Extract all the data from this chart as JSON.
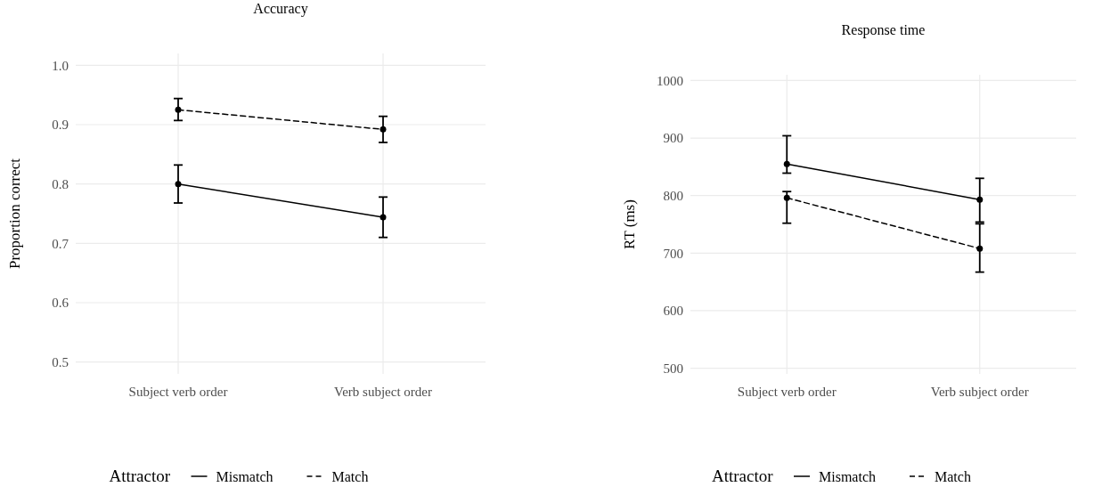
{
  "chart_data": [
    {
      "type": "line",
      "title": "Accuracy",
      "ylabel": "Proportion correct",
      "legend_title": "Attractor",
      "categories": [
        "Subject verb order",
        "Verb subject order"
      ],
      "series": [
        {
          "name": "Mismatch",
          "color": "#000000",
          "line_style": "solid",
          "values": [
            0.8,
            0.744
          ],
          "errors": [
            [
              0.768,
              0.832
            ],
            [
              0.71,
              0.778
            ]
          ]
        },
        {
          "name": "Match",
          "color": "#000000",
          "line_style": "dashed",
          "values": [
            0.925,
            0.892
          ],
          "errors": [
            [
              0.907,
              0.944
            ],
            [
              0.87,
              0.914
            ]
          ]
        }
      ],
      "ylim": [
        0.48,
        1.02
      ],
      "yticks": [
        {
          "value": 0.5,
          "label": "0.5"
        },
        {
          "value": 0.6,
          "label": "0.6"
        },
        {
          "value": 0.7,
          "label": "0.7"
        },
        {
          "value": 0.8,
          "label": "0.8"
        },
        {
          "value": 0.9,
          "label": "0.9"
        },
        {
          "value": 1,
          "label": "1.0"
        }
      ],
      "grid": true,
      "legend": "bottom",
      "marker": "circle"
    },
    {
      "type": "line",
      "title": "Response time",
      "ylabel": "RT (ms)",
      "legend_title": "Attractor",
      "categories": [
        "Subject verb order",
        "Verb subject order"
      ],
      "series": [
        {
          "name": "Mismatch",
          "color": "#000000",
          "line_style": "solid",
          "values": [
            855,
            793
          ],
          "errors": [
            [
              839,
              904
            ],
            [
              754,
              830
            ]
          ]
        },
        {
          "name": "Match",
          "color": "#000000",
          "line_style": "dashed",
          "values": [
            796,
            708
          ],
          "errors": [
            [
              752,
              807
            ],
            [
              667,
              751
            ]
          ]
        }
      ],
      "ylim": [
        490,
        1010
      ],
      "yticks": [
        500,
        600,
        700,
        800,
        900,
        1000
      ],
      "grid": true,
      "legend": "bottom",
      "marker": "circle"
    }
  ]
}
